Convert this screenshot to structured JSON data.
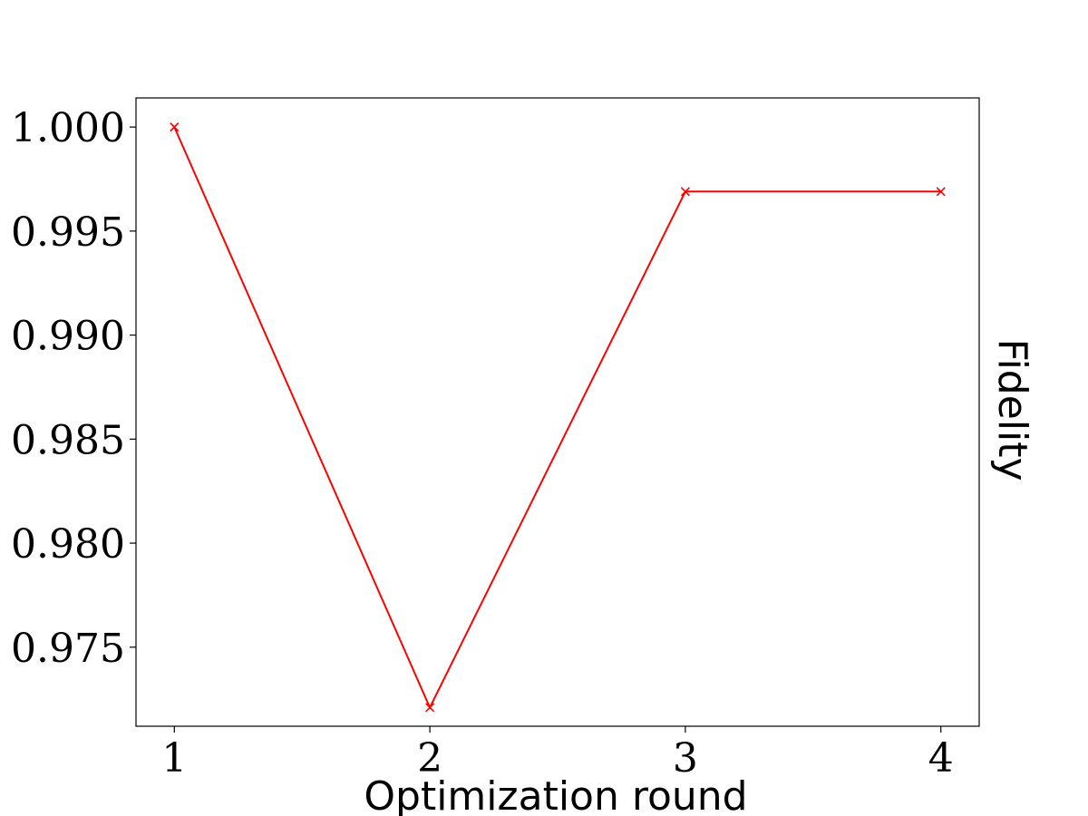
{
  "chart_data": {
    "type": "line",
    "title": "",
    "xlabel": "Optimization round",
    "ylabel": "Fidelity",
    "ylabel_position": "right",
    "x": [
      1,
      2,
      3,
      4
    ],
    "xticks": [
      "1",
      "2",
      "3",
      "4"
    ],
    "yticks": [
      "0.975",
      "0.980",
      "0.985",
      "0.990",
      "0.995",
      "1.000"
    ],
    "ytick_values": [
      0.975,
      0.98,
      0.985,
      0.99,
      0.995,
      1.0
    ],
    "xlim": [
      0.85,
      4.15
    ],
    "ylim": [
      0.9712,
      1.0014
    ],
    "grid": false,
    "legend": "none",
    "series": [
      {
        "values": [
          1.0,
          0.9721,
          0.9969,
          0.9969
        ],
        "color": "#ff0000",
        "marker": "x"
      }
    ]
  }
}
